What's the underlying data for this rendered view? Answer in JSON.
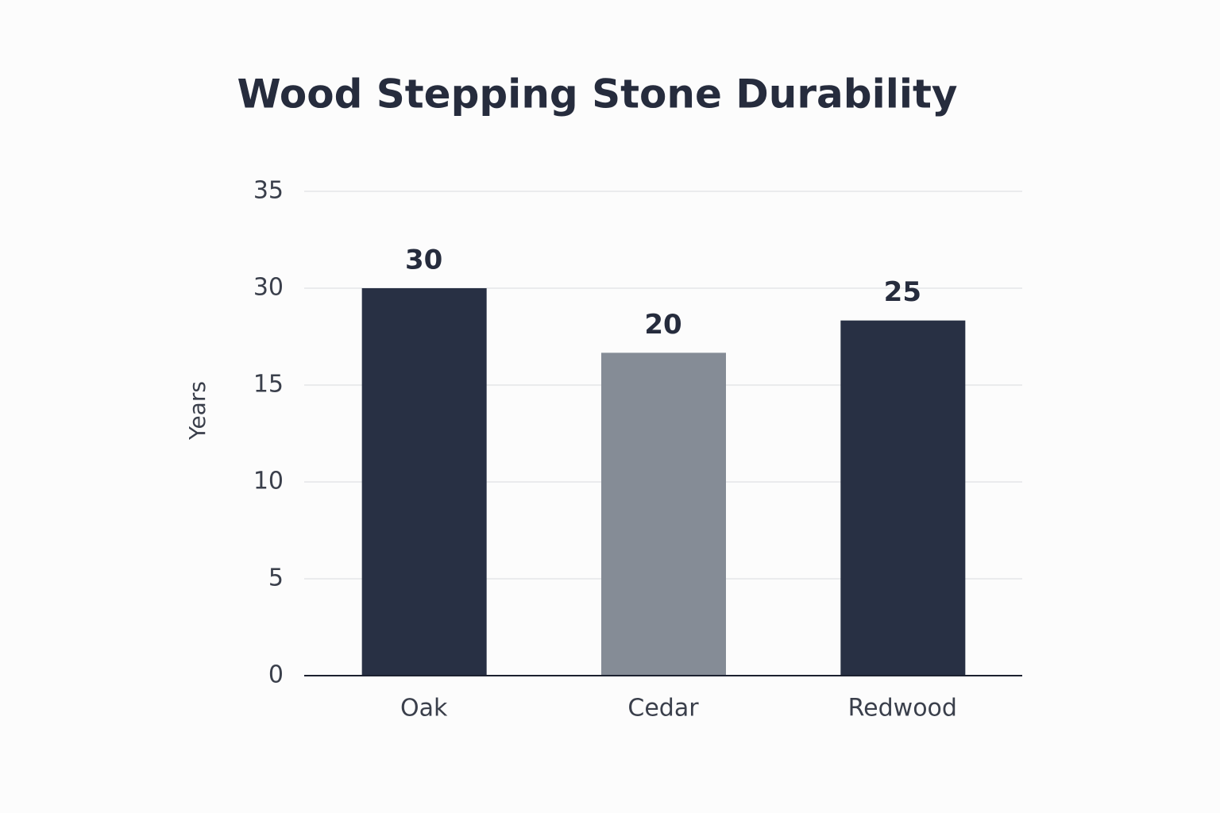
{
  "chart_data": {
    "type": "bar",
    "title": "Wood Stepping Stone Durability",
    "y_label": "Years",
    "categories": [
      "Oak",
      "Cedar",
      "Redwood"
    ],
    "values": [
      30,
      20,
      25
    ],
    "colors": [
      "#283044",
      "#858c96",
      "#283044"
    ],
    "ylim": [
      0,
      35
    ],
    "yticks": [
      0,
      5,
      10,
      15,
      30,
      35
    ],
    "grid": true
  }
}
